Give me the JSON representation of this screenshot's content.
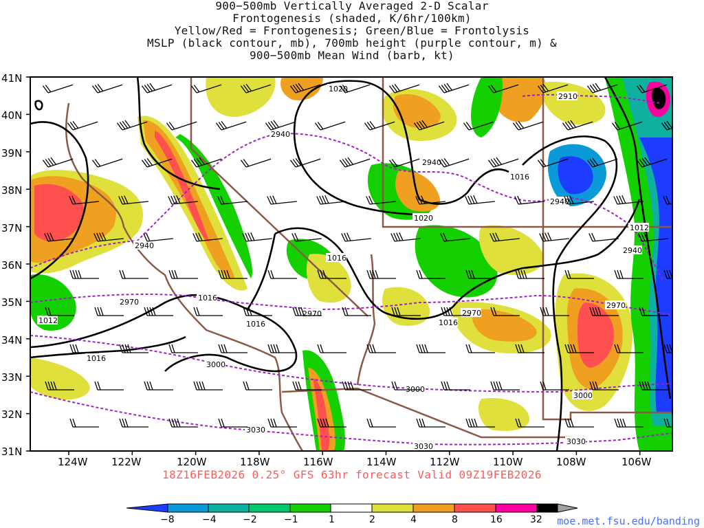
{
  "title_lines": [
    "900−500mb Vertically Averaged 2-D Scalar",
    "Frontogenesis (shaded, K/6hr/100km)",
    "Yellow/Red = Frontogenesis;  Green/Blue = Frontolysis",
    "MSLP (black contour, mb), 700mb height (purple contour, m) &",
    "900−500mb Mean Wind (barb, kt)"
  ],
  "valid_line": "18Z16FEB2026 0.25° GFS 63hr forecast Valid 09Z19FEB2026",
  "credit": "moe.met.fsu.edu/banding",
  "lat_labels": [
    "41N",
    "40N",
    "39N",
    "38N",
    "37N",
    "36N",
    "35N",
    "34N",
    "33N",
    "32N",
    "31N"
  ],
  "lon_labels": [
    "124W",
    "122W",
    "120W",
    "118W",
    "116W",
    "114W",
    "112W",
    "110W",
    "108W",
    "106W"
  ],
  "mslp_labels": [
    "1020",
    "1016",
    "1016",
    "1016",
    "1016",
    "1016",
    "1016",
    "1012",
    "1012",
    "1020"
  ],
  "height_labels": [
    "2910",
    "2940",
    "2940",
    "2940",
    "2940",
    "2940",
    "2970",
    "2970",
    "2970",
    "2970",
    "3000",
    "3000",
    "3000",
    "3030",
    "3030",
    "3030"
  ],
  "colorbar": {
    "labels": [
      "−8",
      "−4",
      "−2",
      "−1",
      "1",
      "2",
      "4",
      "8",
      "16",
      "32"
    ],
    "colors": [
      "#1c3cff",
      "#0a9ad8",
      "#10b0a0",
      "#00c870",
      "#15d000",
      "#ffffff",
      "#e0e03c",
      "#f0a020",
      "#ff5050",
      "#ff3c8c",
      "#ff00a0",
      "#000000",
      "#a0a0a0"
    ]
  },
  "colors": {
    "mslp": "#000000",
    "height": "#a020c8",
    "border": "#8a5a44",
    "frontogenesis": "#ff5050",
    "frontolysis": "#1c3cff"
  }
}
